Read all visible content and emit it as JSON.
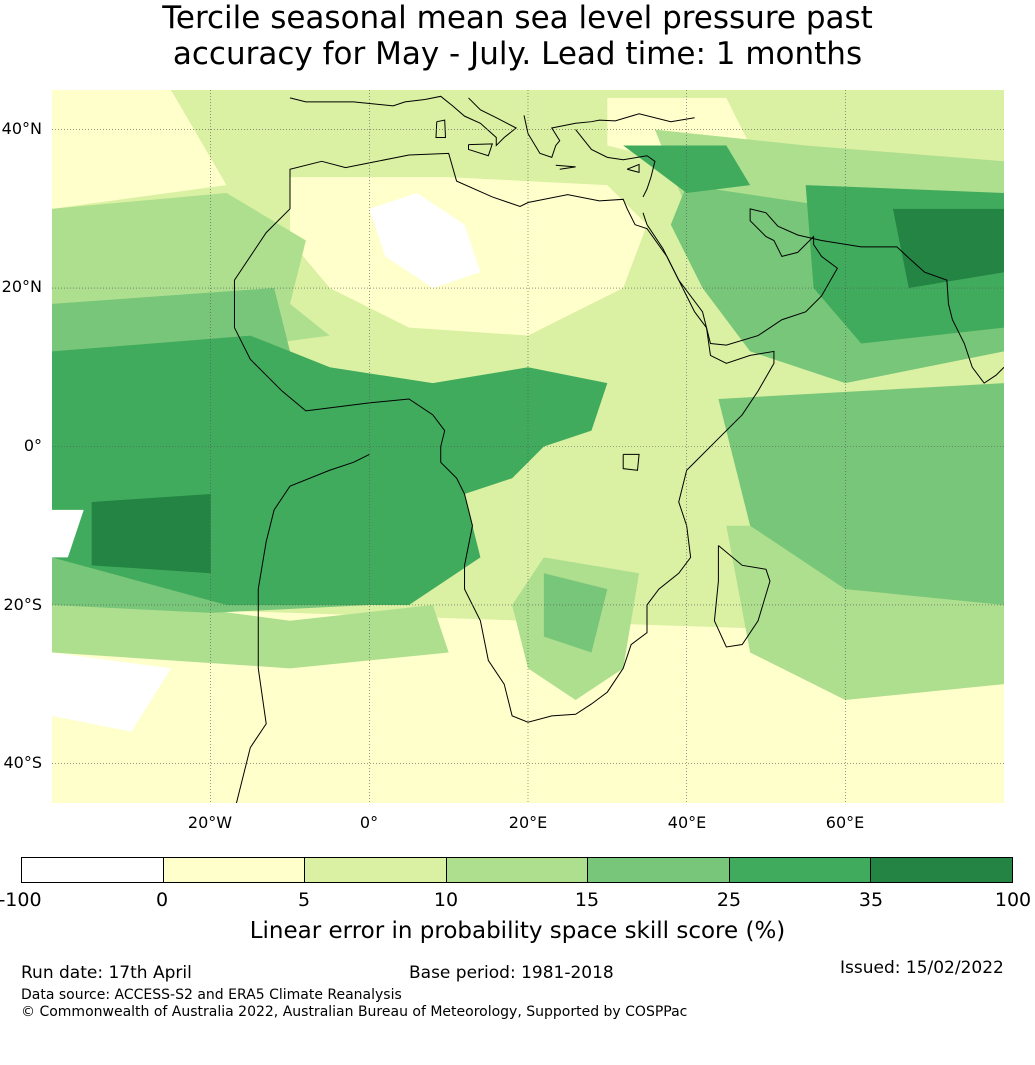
{
  "title": {
    "line1": "Tercile seasonal mean sea level pressure past",
    "line2": "accuracy for May - July. Lead time: 1 months"
  },
  "map": {
    "lat_ticks": [
      "40°N",
      "20°N",
      "0°",
      "20°S",
      "40°S"
    ],
    "lon_ticks": [
      "20°W",
      "0°",
      "20°E",
      "40°E",
      "60°E"
    ],
    "lon_range": [
      -40,
      80
    ],
    "lat_range": [
      -45,
      45
    ],
    "colors": {
      "w": "#ffffff",
      "0": "#feffcb",
      "5": "#daf0a2",
      "10": "#addf8e",
      "15": "#78c679",
      "25": "#41ab5d",
      "35": "#238443"
    }
  },
  "colorbar": {
    "labels": [
      "-100",
      "0",
      "5",
      "10",
      "15",
      "25",
      "35",
      "100"
    ],
    "colors": [
      "#ffffff",
      "#feffcb",
      "#daf0a2",
      "#addf8e",
      "#78c679",
      "#41ab5d",
      "#238443"
    ],
    "title": "Linear error in probability space skill score (%)"
  },
  "footer": {
    "run_date": "Run date: 17th April",
    "base_period": "Base period: 1981-2018",
    "issued": "Issued: 15/02/2022",
    "data_source": "Data source: ACCESS-S2 and ERA5 Climate Reanalysis",
    "copyright": "© Commonwealth of Australia 2022, Australian Bureau of Meteorology, Supported by COSPPac"
  }
}
